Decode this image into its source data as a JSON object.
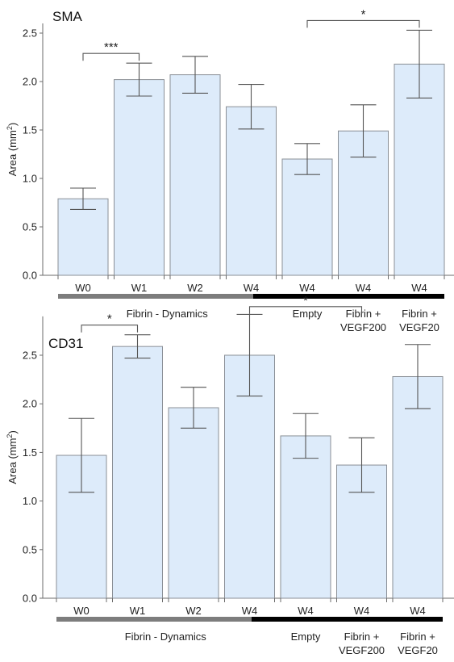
{
  "chart_data": [
    {
      "type": "bar",
      "title": "SMA",
      "ylabel_main": "Area (mm",
      "ylabel_sup": "2",
      "ylabel_close": ")",
      "ylim": [
        0,
        2.6
      ],
      "yticks": [
        "0.0",
        "0.5",
        "1.0",
        "1.5",
        "2.0",
        "2.5"
      ],
      "ytick_values": [
        0,
        0.5,
        1.0,
        1.5,
        2.0,
        2.5
      ],
      "categories": [
        "W0",
        "W1",
        "W2",
        "W4",
        "W4",
        "W4",
        "W4"
      ],
      "values": [
        0.79,
        2.02,
        2.07,
        1.74,
        1.2,
        1.49,
        2.18
      ],
      "errors": [
        0.11,
        0.17,
        0.19,
        0.23,
        0.16,
        0.27,
        0.35
      ],
      "groups": [
        {
          "label_lines": [
            "Fibrin - Dynamics"
          ],
          "from": 0,
          "to": 3,
          "color": "#7d7d7d"
        },
        {
          "label_lines": [
            "Empty"
          ],
          "from": 4,
          "to": 4,
          "color": "#000000"
        },
        {
          "label_lines": [
            "Fibrin +",
            "VEGF200"
          ],
          "from": 5,
          "to": 5,
          "color": "#000000"
        },
        {
          "label_lines": [
            "Fibrin +",
            "VEGF20"
          ],
          "from": 6,
          "to": 6,
          "color": "#000000"
        }
      ],
      "significance": [
        {
          "from": 0,
          "to": 1,
          "label": "***"
        },
        {
          "from": 4,
          "to": 6,
          "label": "*"
        }
      ]
    },
    {
      "type": "bar",
      "title": "CD31",
      "ylabel_main": "Area (mm",
      "ylabel_sup": "2",
      "ylabel_close": ")",
      "ylim": [
        0,
        2.9
      ],
      "yticks": [
        "0.0",
        "0.5",
        "1.0",
        "1.5",
        "2.0",
        "2.5"
      ],
      "ytick_values": [
        0,
        0.5,
        1.0,
        1.5,
        2.0,
        2.5
      ],
      "categories": [
        "W0",
        "W1",
        "W2",
        "W4",
        "W4",
        "W4",
        "W4"
      ],
      "values": [
        1.47,
        2.59,
        1.96,
        2.5,
        1.67,
        1.37,
        2.28
      ],
      "errors": [
        0.38,
        0.12,
        0.21,
        0.42,
        0.23,
        0.28,
        0.33
      ],
      "groups": [
        {
          "label_lines": [
            "Fibrin - Dynamics"
          ],
          "from": 0,
          "to": 3,
          "color": "#7d7d7d"
        },
        {
          "label_lines": [
            "Empty"
          ],
          "from": 4,
          "to": 4,
          "color": "#000000"
        },
        {
          "label_lines": [
            "Fibrin +",
            "VEGF200"
          ],
          "from": 5,
          "to": 5,
          "color": "#000000"
        },
        {
          "label_lines": [
            "Fibrin +",
            "VEGF20"
          ],
          "from": 6,
          "to": 6,
          "color": "#000000"
        }
      ],
      "significance": [
        {
          "from": 0,
          "to": 1,
          "label": "*"
        },
        {
          "from": 3,
          "to": 5,
          "label": "*"
        }
      ]
    }
  ]
}
